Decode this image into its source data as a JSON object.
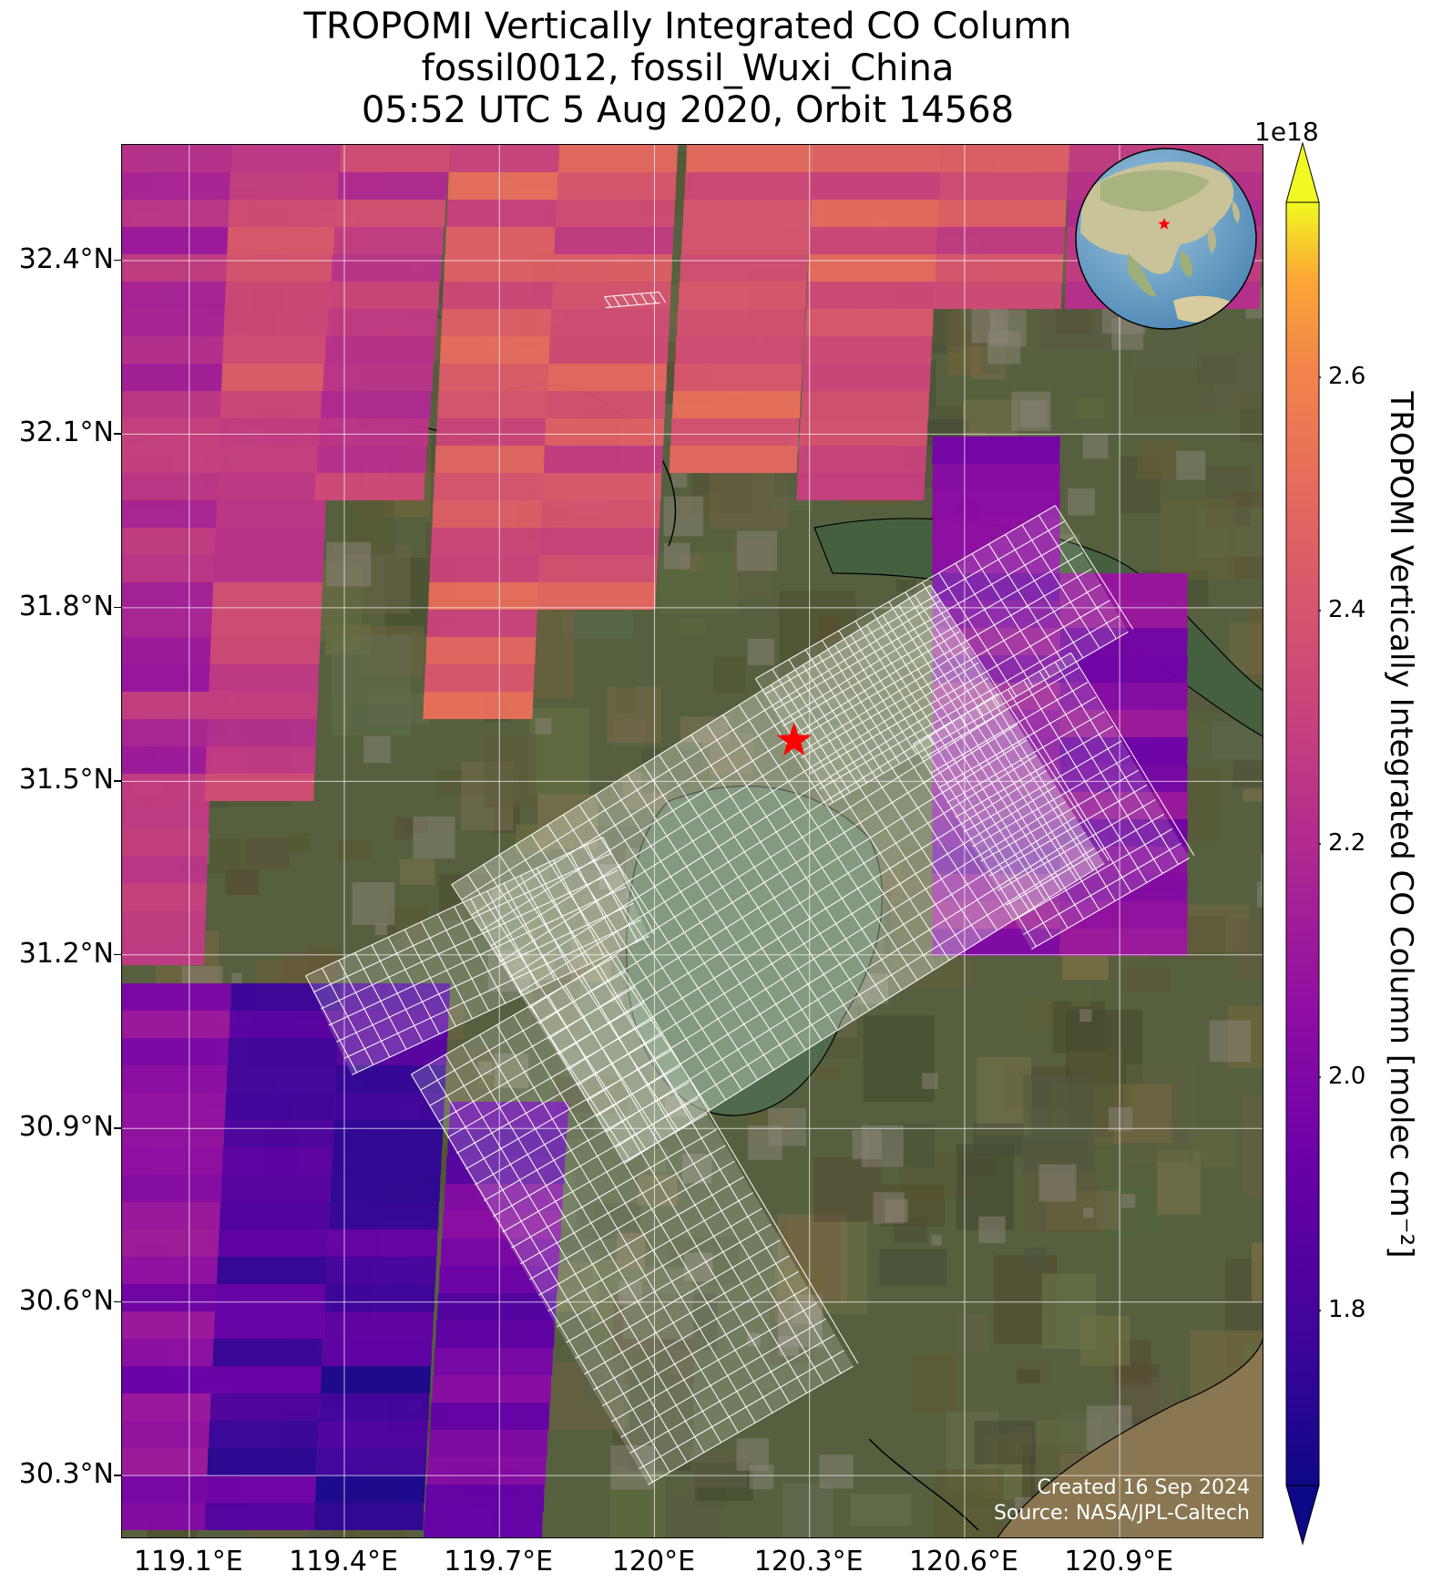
{
  "title": {
    "line1": "TROPOMI Vertically Integrated CO Column",
    "line2": "fossil0012, fossil_Wuxi_China",
    "line3": "05:52 UTC 5 Aug 2020, Orbit 14568"
  },
  "map": {
    "lon_range": [
      118.97,
      121.18
    ],
    "lat_range": [
      30.19,
      32.6
    ],
    "lat_ticks": [
      "32.4°N",
      "32.1°N",
      "31.8°N",
      "31.5°N",
      "31.2°N",
      "30.9°N",
      "30.6°N",
      "30.3°N"
    ],
    "lat_values": [
      32.4,
      32.1,
      31.8,
      31.5,
      31.2,
      30.9,
      30.6,
      30.3
    ],
    "lon_ticks": [
      "119.1°E",
      "119.4°E",
      "119.7°E",
      "120°E",
      "120.3°E",
      "120.6°E",
      "120.9°E"
    ],
    "lon_values": [
      119.1,
      119.4,
      119.7,
      120.0,
      120.3,
      120.6,
      120.9
    ],
    "site_marker": {
      "name": "fossil_Wuxi_China",
      "lon": 120.27,
      "lat": 31.57,
      "symbol": "star",
      "color": "#ff0000"
    },
    "credit_line1": "Created 16 Sep 2024",
    "credit_line2": "Source: NASA/JPL-Caltech",
    "colormap": "plasma",
    "overlay_grid_color": "#ffffff"
  },
  "colorbar": {
    "label": "TROPOMI Vertically Integrated CO Column [molec cm⁻²]",
    "exponent": "1e18",
    "ticks": [
      "1.8",
      "2.0",
      "2.2",
      "2.4",
      "2.6"
    ],
    "tick_values": [
      1.8,
      2.0,
      2.2,
      2.4,
      2.6
    ],
    "vmin": 1.65,
    "vmax": 2.75,
    "extend": "both"
  },
  "inset_globe": {
    "marker": "star",
    "marker_color": "#ff0000"
  }
}
